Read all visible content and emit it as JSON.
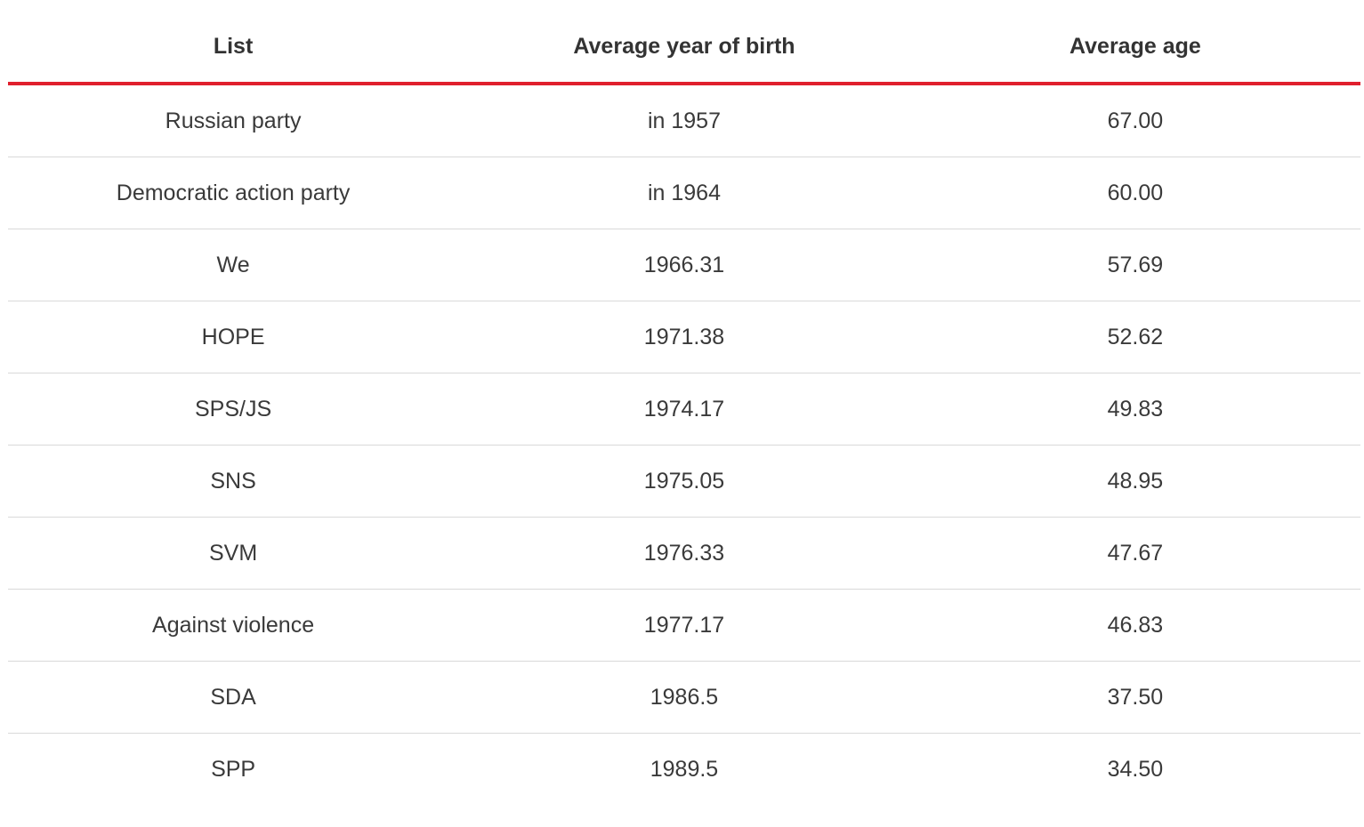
{
  "table": {
    "accent_color": "#e01f2d",
    "headers": [
      "List",
      "Average year of birth",
      "Average age"
    ],
    "rows": [
      [
        "Russian party",
        "in 1957",
        "67.00"
      ],
      [
        "Democratic action party",
        "in 1964",
        "60.00"
      ],
      [
        "We",
        "1966.31",
        "57.69"
      ],
      [
        "HOPE",
        "1971.38",
        "52.62"
      ],
      [
        "SPS/JS",
        "1974.17",
        "49.83"
      ],
      [
        "SNS",
        "1975.05",
        "48.95"
      ],
      [
        "SVM",
        "1976.33",
        "47.67"
      ],
      [
        "Against violence",
        "1977.17",
        "46.83"
      ],
      [
        "SDA",
        "1986.5",
        "37.50"
      ],
      [
        "SPP",
        "1989.5",
        "34.50"
      ]
    ]
  }
}
